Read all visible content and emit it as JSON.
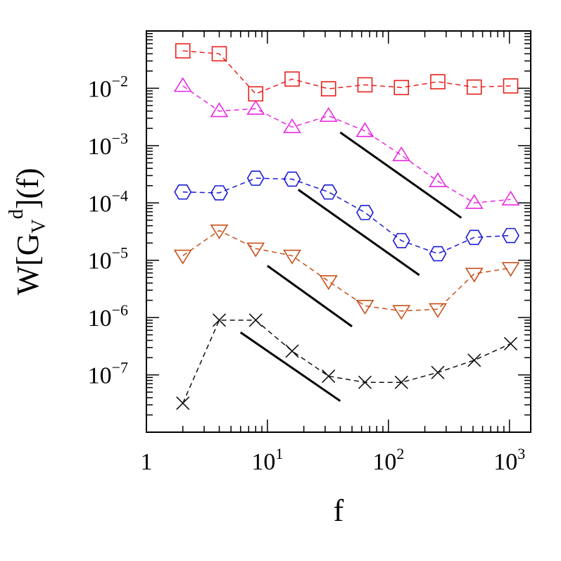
{
  "chart_data": {
    "type": "scatter",
    "xlabel": "f",
    "ylabel": {
      "base": "W[G",
      "sub": "V",
      "sup": "d",
      "tail": "](f)"
    },
    "x_scale": "log",
    "y_scale": "log",
    "xlim": [
      1,
      1500
    ],
    "ylim": [
      1e-08,
      0.1
    ],
    "x_ticks": [
      {
        "value": 1,
        "base": "1",
        "exp": ""
      },
      {
        "value": 10,
        "base": "10",
        "exp": "1"
      },
      {
        "value": 100,
        "base": "10",
        "exp": "2"
      },
      {
        "value": 1000,
        "base": "10",
        "exp": "3"
      }
    ],
    "y_ticks": [
      {
        "value": 0.01,
        "base": "10",
        "exp": "−2"
      },
      {
        "value": 0.001,
        "base": "10",
        "exp": "−3"
      },
      {
        "value": 0.0001,
        "base": "10",
        "exp": "−4"
      },
      {
        "value": 1e-05,
        "base": "10",
        "exp": "−5"
      },
      {
        "value": 1e-06,
        "base": "10",
        "exp": "−6"
      },
      {
        "value": 1e-07,
        "base": "10",
        "exp": "−7"
      }
    ],
    "x": [
      2,
      4,
      8,
      16,
      32,
      64,
      128,
      256,
      512,
      1024
    ],
    "series": [
      {
        "marker": "square",
        "color": "#e8201c",
        "values": [
          0.045,
          0.04,
          0.008,
          0.0145,
          0.0098,
          0.0115,
          0.0103,
          0.013,
          0.0105,
          0.011
        ]
      },
      {
        "marker": "triangle-up",
        "color": "#e829e0",
        "values": [
          0.011,
          0.004,
          0.0044,
          0.0021,
          0.0033,
          0.0018,
          0.00068,
          0.00024,
          0.0001,
          0.000115
        ]
      },
      {
        "marker": "hexagon",
        "color": "#1a1ad8",
        "values": [
          0.000155,
          0.00015,
          0.00027,
          0.00026,
          0.000155,
          6.8e-05,
          2.2e-05,
          1.3e-05,
          2.5e-05,
          2.7e-05
        ]
      },
      {
        "marker": "triangle-down",
        "color": "#c8501a",
        "values": [
          1.2e-05,
          3.3e-05,
          1.6e-05,
          1.2e-05,
          4.3e-06,
          1.6e-06,
          1.3e-06,
          1.4e-06,
          5.8e-06,
          7.3e-06
        ]
      },
      {
        "marker": "cross",
        "color": "#111111",
        "values": [
          3.2e-08,
          9e-07,
          9e-07,
          2.6e-07,
          9.5e-08,
          7.4e-08,
          7.4e-08,
          1.1e-07,
          1.8e-07,
          3.5e-07
        ]
      }
    ],
    "reference_lines": [
      {
        "x": [
          40,
          400
        ],
        "y": [
          0.0017,
          5.5e-05
        ]
      },
      {
        "x": [
          18,
          180
        ],
        "y": [
          0.00017,
          5.5e-06
        ]
      },
      {
        "x": [
          10,
          50
        ],
        "y": [
          8e-06,
          7e-07
        ]
      },
      {
        "x": [
          6,
          40
        ],
        "y": [
          5.5e-07,
          3.5e-08
        ]
      }
    ]
  }
}
